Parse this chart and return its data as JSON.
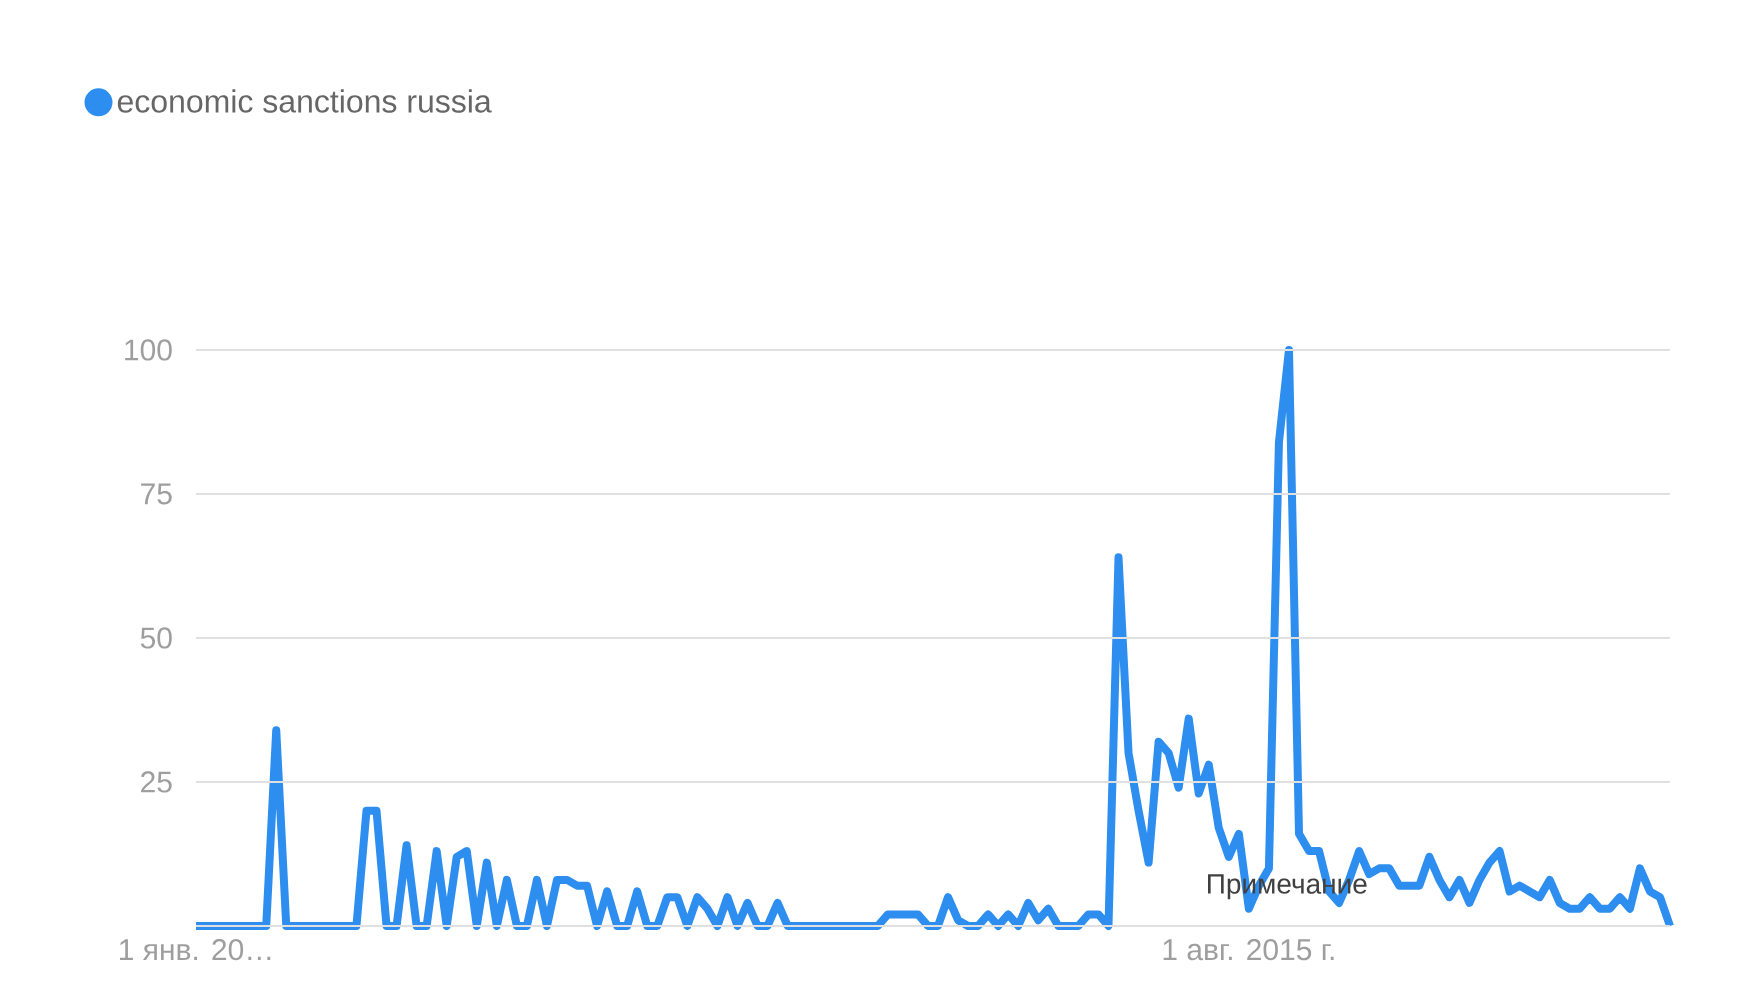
{
  "chart_data": {
    "type": "line",
    "categories": [
      "1 янв. 20…",
      null,
      null,
      null,
      null,
      null,
      null,
      null,
      null,
      null,
      null,
      null,
      null,
      null,
      null,
      null,
      null,
      null,
      null,
      null,
      null,
      null,
      null,
      null,
      null,
      null,
      null,
      null,
      null,
      null,
      null,
      null,
      null,
      null,
      null,
      null,
      null,
      null,
      null,
      null,
      null,
      null,
      null,
      null,
      null,
      null,
      null,
      null,
      null,
      null,
      null,
      null,
      null,
      null,
      null,
      null,
      null,
      null,
      null,
      null,
      null,
      null,
      null,
      null,
      null,
      null,
      null,
      null,
      null,
      null,
      null,
      null,
      null,
      null,
      null,
      null,
      null,
      null,
      null,
      null,
      null,
      null,
      null,
      null,
      null,
      null,
      null,
      null,
      null,
      null,
      null,
      null,
      null,
      null,
      null,
      null,
      null,
      null,
      null,
      null,
      null,
      null,
      null,
      null,
      null,
      "1 авг. 2015 г.",
      null,
      null,
      null,
      null,
      null,
      null,
      null,
      null,
      null,
      null,
      null,
      null,
      null,
      null,
      null,
      null,
      null,
      null,
      null,
      null,
      null,
      null,
      null,
      null,
      null,
      null,
      null,
      null,
      null,
      null,
      null,
      null,
      null,
      null,
      null,
      null,
      null,
      null,
      null,
      null,
      null,
      null
    ],
    "series": [
      {
        "name": "economic sanctions russia",
        "color": "#2d8ef0",
        "values": [
          0,
          0,
          0,
          0,
          0,
          0,
          0,
          0,
          34,
          0,
          0,
          0,
          0,
          0,
          0,
          0,
          0,
          20,
          20,
          0,
          0,
          14,
          0,
          0,
          13,
          0,
          12,
          13,
          0,
          11,
          0,
          8,
          0,
          0,
          8,
          0,
          8,
          8,
          7,
          7,
          0,
          6,
          0,
          0,
          6,
          0,
          0,
          5,
          5,
          0,
          5,
          3,
          0,
          5,
          0,
          4,
          0,
          0,
          4,
          0,
          0,
          0,
          0,
          0,
          0,
          0,
          0,
          0,
          0,
          2,
          2,
          2,
          2,
          0,
          0,
          5,
          1,
          0,
          0,
          2,
          0,
          2,
          0,
          4,
          1,
          3,
          0,
          0,
          0,
          2,
          2,
          0,
          64,
          30,
          20,
          11,
          32,
          30,
          24,
          36,
          23,
          28,
          17,
          12,
          16,
          3,
          7,
          10,
          84,
          100,
          16,
          13,
          13,
          6,
          4,
          8,
          13,
          9,
          10,
          10,
          7,
          7,
          7,
          12,
          8,
          5,
          8,
          4,
          8,
          11,
          13,
          6,
          7,
          6,
          5,
          8,
          4,
          3,
          3,
          5,
          3,
          3,
          5,
          3,
          10,
          6,
          5,
          0
        ]
      }
    ],
    "ylim": [
      0,
      100
    ],
    "yticks": [
      25,
      50,
      75,
      100
    ],
    "grid": "y",
    "legend": "top left",
    "annotations": [
      "Примечание"
    ]
  }
}
